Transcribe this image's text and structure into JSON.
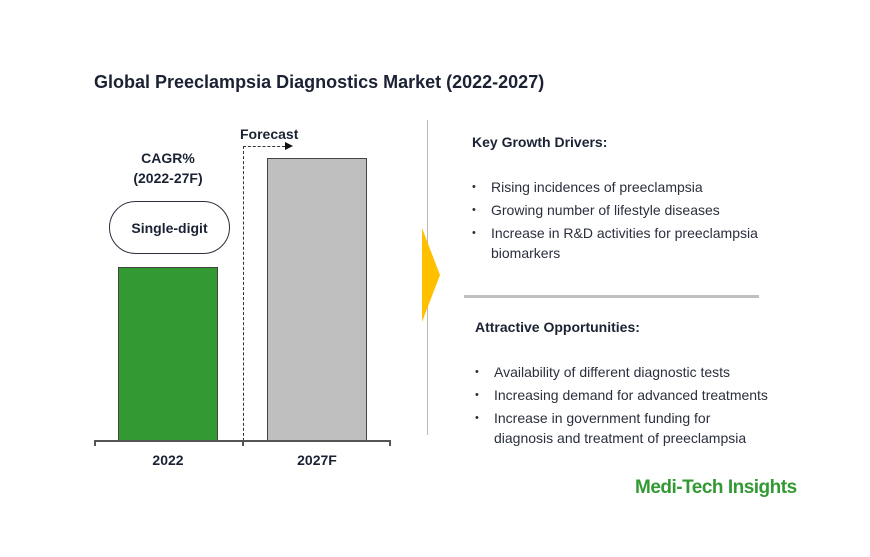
{
  "title": "Global Preeclampsia Diagnostics Market (2022-2027)",
  "chart_data": {
    "type": "bar",
    "title": "Global Preeclampsia Diagnostics Market (2022-2027)",
    "categories": [
      "2022",
      "2027F"
    ],
    "values": [
      100,
      163
    ],
    "value_note": "relative index; no axis values shown",
    "colors": [
      "#339933",
      "#bfbfbf"
    ],
    "forecast_label": "Forecast",
    "cagr_label": "CAGR%",
    "cagr_period": "(2022-27F)",
    "cagr_value": "Single-digit",
    "xlabel": "",
    "ylabel": ""
  },
  "drivers": {
    "heading": "Key Growth Drivers:",
    "items": [
      "Rising incidences of preeclampsia",
      "Growing number of lifestyle diseases",
      "Increase in R&D activities for preeclampsia biomarkers"
    ]
  },
  "opportunities": {
    "heading": "Attractive Opportunities:",
    "items": [
      "Availability of different diagnostic tests",
      "Increasing demand for advanced treatments",
      "Increase in government funding for diagnosis and treatment of preeclampsia"
    ]
  },
  "brand": "Medi-Tech Insights",
  "colors": {
    "accent": "#ffc000",
    "brand": "#339933"
  }
}
